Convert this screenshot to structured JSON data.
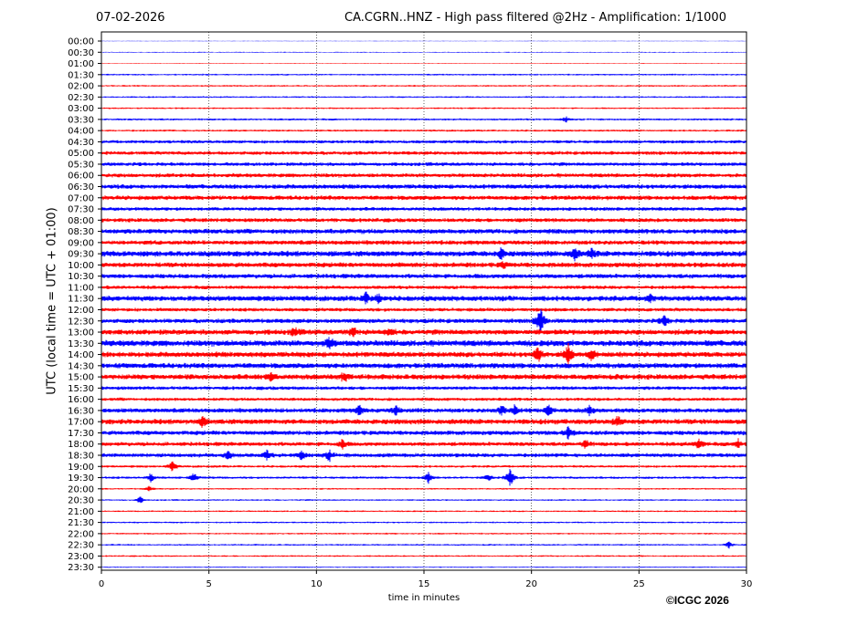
{
  "header": {
    "date": "07-02-2026",
    "title": "CA.CGRN..HNZ - High pass filtered @2Hz - Amplification: 1/1000"
  },
  "footer": {
    "copyright": "©ICGC 2026"
  },
  "chart_data": {
    "type": "line",
    "xlabel": "time in minutes",
    "ylabel": "UTC (local time = UTC + 01:00)",
    "xlim": [
      0,
      30
    ],
    "x_ticks": [
      0,
      5,
      10,
      15,
      20,
      25,
      30
    ],
    "grid": "vertical dotted at each x tick",
    "colors": {
      "trace_a": "#0000ff",
      "trace_b": "#ff0000",
      "grid": "#000000"
    },
    "rows": [
      "00:00",
      "00:30",
      "01:00",
      "01:30",
      "02:00",
      "02:30",
      "03:00",
      "03:30",
      "04:00",
      "04:30",
      "05:00",
      "05:30",
      "06:00",
      "06:30",
      "07:00",
      "07:30",
      "08:00",
      "08:30",
      "09:00",
      "09:30",
      "10:00",
      "10:30",
      "11:00",
      "11:30",
      "12:00",
      "12:30",
      "13:00",
      "13:30",
      "14:00",
      "14:30",
      "15:00",
      "15:30",
      "16:00",
      "16:30",
      "17:00",
      "17:30",
      "18:00",
      "18:30",
      "19:00",
      "19:30",
      "20:00",
      "20:30",
      "21:00",
      "21:30",
      "22:00",
      "22:30",
      "23:00",
      "23:30"
    ],
    "trace_colors": [
      "blue",
      "blue",
      "red",
      "blue",
      "red",
      "blue",
      "red",
      "blue",
      "red",
      "blue",
      "red",
      "blue",
      "red",
      "blue",
      "red",
      "blue",
      "red",
      "blue",
      "red",
      "blue",
      "red",
      "blue",
      "red",
      "blue",
      "red",
      "blue",
      "red",
      "blue",
      "red",
      "blue",
      "red",
      "blue",
      "red",
      "blue",
      "red",
      "blue",
      "red",
      "blue",
      "red",
      "blue",
      "red",
      "blue",
      "red",
      "blue",
      "red",
      "blue",
      "red",
      "blue"
    ],
    "noise_level": [
      0.2,
      0.4,
      0.4,
      0.8,
      0.8,
      0.8,
      0.8,
      1.0,
      1.0,
      1.6,
      1.8,
      1.8,
      2.0,
      2.2,
      2.2,
      1.8,
      2.0,
      2.4,
      2.2,
      2.8,
      2.4,
      2.2,
      1.8,
      2.6,
      1.8,
      2.2,
      2.6,
      3.0,
      2.6,
      2.6,
      2.6,
      1.8,
      1.6,
      2.2,
      2.6,
      2.2,
      2.0,
      2.0,
      1.2,
      1.2,
      0.8,
      0.8,
      0.8,
      0.8,
      0.8,
      0.8,
      0.8,
      0.6
    ],
    "events": [
      {
        "row": "03:30",
        "t": 21.6,
        "amp": 3
      },
      {
        "row": "09:30",
        "t": 18.6,
        "amp": 6
      },
      {
        "row": "09:30",
        "t": 22.0,
        "amp": 7
      },
      {
        "row": "09:30",
        "t": 22.8,
        "amp": 5
      },
      {
        "row": "10:00",
        "t": 18.7,
        "amp": 3
      },
      {
        "row": "11:30",
        "t": 12.3,
        "amp": 6
      },
      {
        "row": "11:30",
        "t": 12.9,
        "amp": 5
      },
      {
        "row": "11:30",
        "t": 25.5,
        "amp": 4
      },
      {
        "row": "12:30",
        "t": 20.4,
        "amp": 18
      },
      {
        "row": "12:30",
        "t": 26.2,
        "amp": 6
      },
      {
        "row": "13:00",
        "t": 9.0,
        "amp": 5
      },
      {
        "row": "13:00",
        "t": 11.7,
        "amp": 6
      },
      {
        "row": "13:00",
        "t": 13.4,
        "amp": 4
      },
      {
        "row": "13:30",
        "t": 10.6,
        "amp": 6
      },
      {
        "row": "14:00",
        "t": 20.3,
        "amp": 10
      },
      {
        "row": "14:00",
        "t": 21.7,
        "amp": 12
      },
      {
        "row": "14:00",
        "t": 22.8,
        "amp": 6
      },
      {
        "row": "15:00",
        "t": 7.9,
        "amp": 5
      },
      {
        "row": "15:00",
        "t": 11.3,
        "amp": 6
      },
      {
        "row": "16:30",
        "t": 12.0,
        "amp": 6
      },
      {
        "row": "16:30",
        "t": 13.7,
        "amp": 5
      },
      {
        "row": "16:30",
        "t": 18.6,
        "amp": 6
      },
      {
        "row": "16:30",
        "t": 19.2,
        "amp": 5
      },
      {
        "row": "16:30",
        "t": 20.8,
        "amp": 6
      },
      {
        "row": "16:30",
        "t": 22.7,
        "amp": 5
      },
      {
        "row": "17:00",
        "t": 4.7,
        "amp": 6
      },
      {
        "row": "17:00",
        "t": 24.0,
        "amp": 5
      },
      {
        "row": "17:30",
        "t": 21.7,
        "amp": 6
      },
      {
        "row": "18:00",
        "t": 11.2,
        "amp": 5
      },
      {
        "row": "18:00",
        "t": 22.5,
        "amp": 5
      },
      {
        "row": "18:00",
        "t": 27.8,
        "amp": 6
      },
      {
        "row": "18:00",
        "t": 29.6,
        "amp": 5
      },
      {
        "row": "18:30",
        "t": 5.9,
        "amp": 6
      },
      {
        "row": "18:30",
        "t": 7.7,
        "amp": 5
      },
      {
        "row": "18:30",
        "t": 9.3,
        "amp": 5
      },
      {
        "row": "18:30",
        "t": 10.6,
        "amp": 6
      },
      {
        "row": "19:00",
        "t": 3.3,
        "amp": 6
      },
      {
        "row": "19:30",
        "t": 2.3,
        "amp": 5
      },
      {
        "row": "19:30",
        "t": 4.3,
        "amp": 5
      },
      {
        "row": "19:30",
        "t": 15.2,
        "amp": 6
      },
      {
        "row": "19:30",
        "t": 18.0,
        "amp": 4
      },
      {
        "row": "19:30",
        "t": 19.0,
        "amp": 12
      },
      {
        "row": "20:00",
        "t": 2.2,
        "amp": 3
      },
      {
        "row": "20:30",
        "t": 1.8,
        "amp": 4
      },
      {
        "row": "22:30",
        "t": 29.2,
        "amp": 4
      }
    ]
  }
}
